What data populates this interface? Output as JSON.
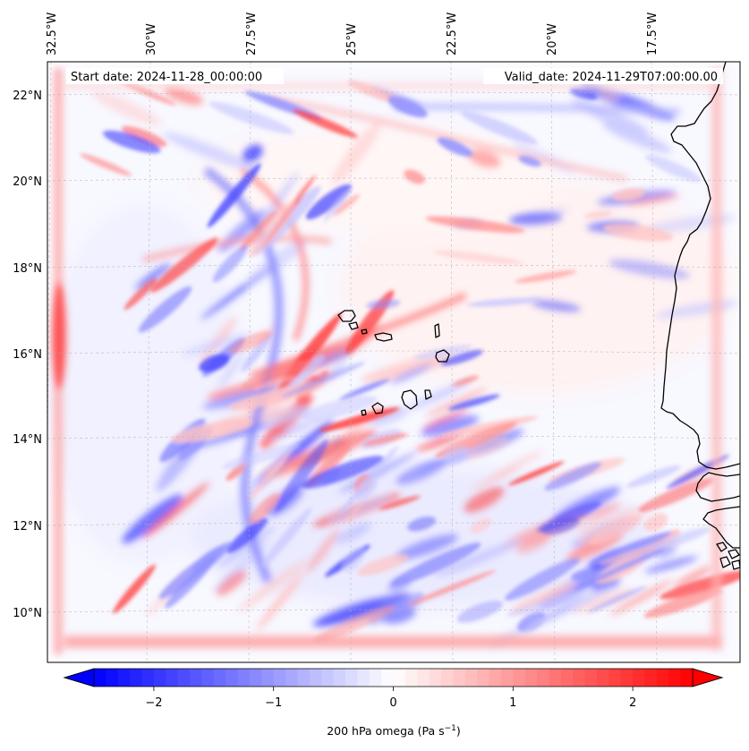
{
  "map": {
    "start_date": "Start date: 2024-11-28_00:00:00",
    "valid_date": "Valid_date: 2024-11-29T07:00:00.00",
    "lon_ticks": [
      "32.5°W",
      "30°W",
      "27.5°W",
      "25°W",
      "22.5°W",
      "20°W",
      "17.5°W"
    ],
    "lat_ticks": [
      "22°N",
      "20°N",
      "18°N",
      "16°N",
      "14°N",
      "12°N",
      "10°N"
    ],
    "extent": {
      "lon_min": -33.0,
      "lon_max": -15.4,
      "lat_min": 8.9,
      "lat_max": 22.8
    },
    "field": "200 hPa omega",
    "coastline_color": "#000000",
    "grid": true
  },
  "colorbar": {
    "label": "200 hPa omega (Pa s",
    "label_exp": "−1",
    "label_tail": ")",
    "ticks": [
      "−2",
      "−1",
      "0",
      "1",
      "2"
    ],
    "tick_values": [
      -2,
      -1,
      0,
      1,
      2
    ],
    "range": [
      -2.5,
      2.5
    ],
    "extend": "both",
    "colormap": "bwr",
    "color_min": "#0000ff",
    "color_mid": "#ffffff",
    "color_max": "#ff0000"
  }
}
